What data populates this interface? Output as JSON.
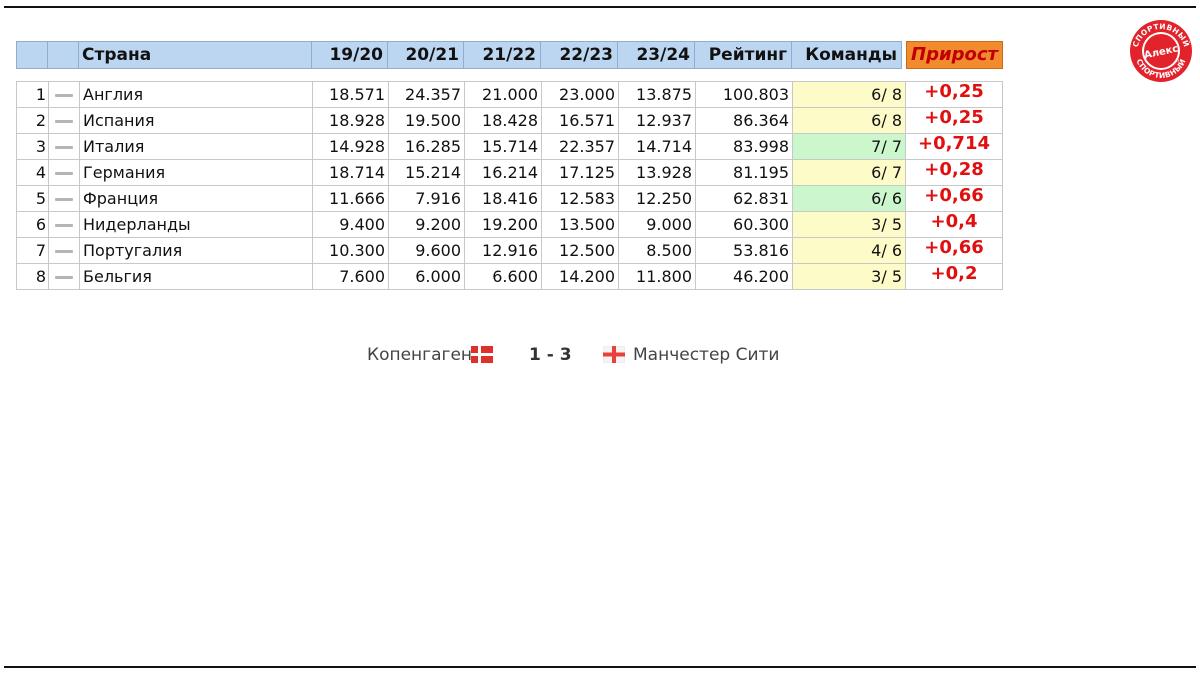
{
  "header": {
    "country": "Страна",
    "seasons": [
      "19/20",
      "20/21",
      "21/22",
      "22/23",
      "23/24"
    ],
    "rating": "Рейтинг",
    "teams": "Команды",
    "growth": "Прирост"
  },
  "rows": [
    {
      "pos": "1",
      "country": "Англия",
      "s1": "18.571",
      "s2": "24.357",
      "s3": "21.000",
      "s4": "23.000",
      "s5": "13.875",
      "rating": "100.803",
      "teams": "6/ 8",
      "teams_status": "yellow",
      "gain": "+0,25"
    },
    {
      "pos": "2",
      "country": "Испания",
      "s1": "18.928",
      "s2": "19.500",
      "s3": "18.428",
      "s4": "16.571",
      "s5": "12.937",
      "rating": "86.364",
      "teams": "6/ 8",
      "teams_status": "yellow",
      "gain": "+0,25"
    },
    {
      "pos": "3",
      "country": "Италия",
      "s1": "14.928",
      "s2": "16.285",
      "s3": "15.714",
      "s4": "22.357",
      "s5": "14.714",
      "rating": "83.998",
      "teams": "7/ 7",
      "teams_status": "green",
      "gain": "+0,714"
    },
    {
      "pos": "4",
      "country": "Германия",
      "s1": "18.714",
      "s2": "15.214",
      "s3": "16.214",
      "s4": "17.125",
      "s5": "13.928",
      "rating": "81.195",
      "teams": "6/ 7",
      "teams_status": "yellow",
      "gain": "+0,28"
    },
    {
      "pos": "5",
      "country": "Франция",
      "s1": "11.666",
      "s2": "7.916",
      "s3": "18.416",
      "s4": "12.583",
      "s5": "12.250",
      "rating": "62.831",
      "teams": "6/ 6",
      "teams_status": "green",
      "gain": "+0,66"
    },
    {
      "pos": "6",
      "country": "Нидерланды",
      "s1": "9.400",
      "s2": "9.200",
      "s3": "19.200",
      "s4": "13.500",
      "s5": "9.000",
      "rating": "60.300",
      "teams": "3/ 5",
      "teams_status": "yellow",
      "gain": "+0,4"
    },
    {
      "pos": "7",
      "country": "Португалия",
      "s1": "10.300",
      "s2": "9.600",
      "s3": "12.916",
      "s4": "12.500",
      "s5": "8.500",
      "rating": "53.816",
      "teams": "4/ 6",
      "teams_status": "yellow",
      "gain": "+0,66"
    },
    {
      "pos": "8",
      "country": "Бельгия",
      "s1": "7.600",
      "s2": "6.000",
      "s3": "6.600",
      "s4": "14.200",
      "s5": "11.800",
      "rating": "46.200",
      "teams": "3/ 5",
      "teams_status": "yellow",
      "gain": "+0,2"
    }
  ],
  "match": {
    "home": "Копенгаген",
    "home_flag": "denmark-flag",
    "score": "1 - 3",
    "away_flag": "england-flag",
    "away": "Манчестер Сити"
  },
  "logo": {
    "center_text": "Алекс",
    "ring_text": "СПОРТИВНЫЙ"
  },
  "colors": {
    "header_bg": "#bcd6f2",
    "growth_bg": "#f28a2e",
    "gain_red": "#e01010",
    "teams_yellow": "#fdfbc8",
    "teams_green": "#ccf7cc"
  }
}
